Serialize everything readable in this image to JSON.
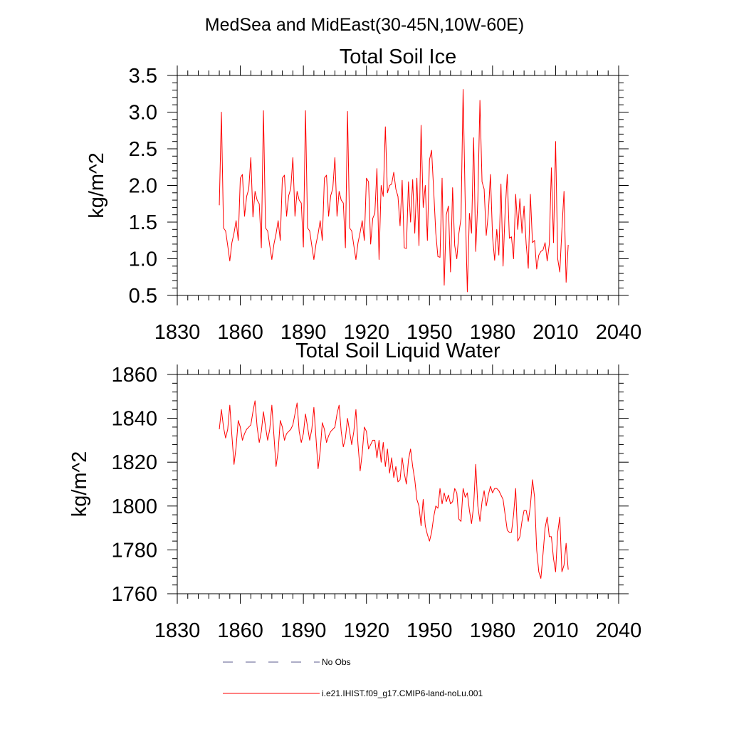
{
  "figure": {
    "title": "MedSea and MidEast(30-45N,10W-60E)"
  },
  "legend": {
    "placement": "bottom-left",
    "entries": [
      {
        "label": "No Obs",
        "color": "#5a5a8c",
        "dash": "dashed"
      },
      {
        "label": "i.e21.IHIST.f09_g17.CMIP6-land-noLu.001",
        "color": "#ff0000",
        "dash": "solid"
      }
    ]
  },
  "chart_data": [
    {
      "type": "line",
      "title": "Total Soil Ice",
      "xlabel": "",
      "ylabel": "kg/m^2",
      "xlim": [
        1830,
        2040
      ],
      "ylim": [
        0.5,
        3.5
      ],
      "xticks": [
        1830,
        1860,
        1890,
        1920,
        1950,
        1980,
        2010,
        2040
      ],
      "xtick_labels": [
        "1830",
        "1860",
        "1890",
        "1920",
        "1950",
        "1980",
        "2010",
        "2040"
      ],
      "yticks": [
        0.5,
        1.0,
        1.5,
        2.0,
        2.5,
        3.0,
        3.5
      ],
      "ytick_labels": [
        "0.5",
        "1.0",
        "1.5",
        "2.0",
        "2.5",
        "3.0",
        "3.5"
      ],
      "grid": false,
      "series": [
        {
          "name": "i.e21.IHIST.f09_g17.CMIP6-land-noLu.001",
          "color": "#ff0000",
          "x_start": 1850,
          "x_step": 1,
          "values": [
            1.73,
            3.0,
            1.42,
            1.38,
            1.18,
            0.97,
            1.22,
            1.35,
            1.52,
            1.25,
            2.1,
            2.15,
            1.58,
            1.85,
            1.95,
            2.38,
            1.57,
            1.92,
            1.8,
            1.75,
            1.15,
            3.02,
            1.42,
            1.38,
            1.18,
            0.99,
            1.2,
            1.34,
            1.52,
            1.25,
            2.1,
            2.14,
            1.58,
            1.86,
            1.96,
            2.38,
            1.58,
            1.92,
            1.8,
            1.76,
            1.16,
            3.02,
            1.42,
            1.38,
            1.18,
            0.99,
            1.2,
            1.34,
            1.52,
            1.25,
            2.1,
            2.14,
            1.58,
            1.86,
            1.96,
            2.38,
            1.58,
            1.92,
            1.8,
            1.76,
            1.15,
            3.01,
            1.42,
            1.38,
            1.18,
            0.99,
            1.22,
            1.36,
            1.52,
            1.25,
            2.1,
            2.05,
            1.2,
            1.55,
            1.62,
            2.23,
            0.99,
            2.0,
            1.85,
            2.8,
            1.9,
            2.0,
            2.02,
            2.18,
            1.95,
            1.85,
            1.45,
            2.07,
            1.15,
            1.14,
            2.05,
            1.5,
            2.08,
            1.35,
            2.1,
            1.18,
            2.82,
            1.7,
            2.0,
            1.25,
            2.35,
            2.48,
            1.93,
            1.35,
            1.03,
            1.02,
            2.1,
            0.64,
            1.6,
            1.72,
            0.82,
            1.97,
            1.18,
            1.0,
            1.35,
            1.55,
            3.31,
            1.75,
            0.55,
            1.62,
            1.35,
            2.65,
            1.1,
            1.8,
            3.16,
            2.05,
            1.95,
            1.32,
            1.62,
            2.15,
            1.3,
            0.98,
            1.4,
            1.05,
            2.02,
            0.9,
            1.65,
            2.15,
            1.28,
            1.3,
            1.0,
            1.88,
            1.4,
            1.82,
            1.35,
            1.72,
            1.2,
            0.87,
            1.88,
            1.22,
            1.25,
            0.86,
            1.05,
            1.1,
            1.12,
            1.22,
            0.97,
            1.2,
            2.24,
            1.22,
            2.6,
            1.0,
            0.82,
            1.4,
            1.92,
            0.68,
            1.19
          ]
        }
      ]
    },
    {
      "type": "line",
      "title": "Total Soil Liquid Water",
      "xlabel": "",
      "ylabel": "kg/m^2",
      "xlim": [
        1830,
        2040
      ],
      "ylim": [
        1760,
        1860
      ],
      "xticks": [
        1830,
        1860,
        1890,
        1920,
        1950,
        1980,
        2010,
        2040
      ],
      "xtick_labels": [
        "1830",
        "1860",
        "1890",
        "1920",
        "1950",
        "1980",
        "2010",
        "2040"
      ],
      "yticks": [
        1760,
        1780,
        1800,
        1820,
        1840,
        1860
      ],
      "ytick_labels": [
        "1760",
        "1780",
        "1800",
        "1820",
        "1840",
        "1860"
      ],
      "grid": false,
      "series": [
        {
          "name": "i.e21.IHIST.f09_g17.CMIP6-land-noLu.001",
          "color": "#ff0000",
          "x_start": 1850,
          "x_step": 1,
          "values": [
            1835,
            1844,
            1836,
            1831,
            1835,
            1846,
            1832,
            1819,
            1827,
            1839,
            1836,
            1830,
            1833,
            1835,
            1836,
            1837,
            1843,
            1848,
            1836,
            1829,
            1834,
            1843,
            1836,
            1830,
            1835,
            1846,
            1832,
            1818,
            1825,
            1839,
            1836,
            1830,
            1833,
            1834,
            1835,
            1837,
            1842,
            1847,
            1834,
            1829,
            1833,
            1842,
            1836,
            1830,
            1835,
            1845,
            1831,
            1817,
            1825,
            1838,
            1835,
            1829,
            1832,
            1834,
            1835,
            1836,
            1842,
            1846,
            1834,
            1827,
            1831,
            1840,
            1834,
            1828,
            1834,
            1844,
            1828,
            1816,
            1824,
            1836,
            1834,
            1826,
            1828,
            1830,
            1830,
            1822,
            1830,
            1820,
            1829,
            1818,
            1826,
            1815,
            1822,
            1813,
            1818,
            1811,
            1812,
            1822,
            1815,
            1810,
            1821,
            1826,
            1818,
            1812,
            1803,
            1800,
            1791,
            1803,
            1791,
            1787,
            1784,
            1788,
            1795,
            1800,
            1799,
            1808,
            1801,
            1806,
            1802,
            1805,
            1801,
            1802,
            1808,
            1806,
            1794,
            1793,
            1808,
            1804,
            1806,
            1798,
            1792,
            1800,
            1819,
            1800,
            1793,
            1802,
            1807,
            1800,
            1805,
            1809,
            1806,
            1808,
            1808,
            1807,
            1805,
            1803,
            1796,
            1789,
            1788,
            1788,
            1796,
            1808,
            1784,
            1786,
            1793,
            1798,
            1798,
            1793,
            1800,
            1812,
            1804,
            1780,
            1770,
            1767,
            1778,
            1790,
            1795,
            1786,
            1786,
            1776,
            1770,
            1788,
            1795,
            1770,
            1773,
            1783,
            1771
          ]
        }
      ]
    }
  ]
}
